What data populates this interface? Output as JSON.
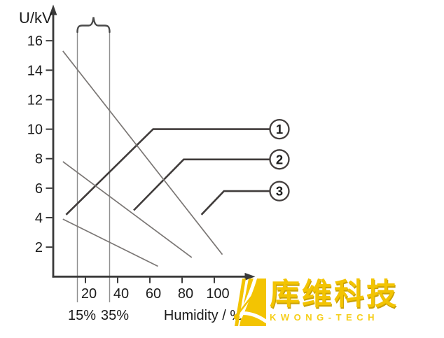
{
  "chart_data": {
    "type": "line",
    "title": "",
    "ylabel": "U/kV",
    "xlabel": "Humidity / %",
    "xlim": [
      0,
      125
    ],
    "ylim": [
      0,
      18
    ],
    "xticks": [
      20,
      40,
      60,
      80,
      100
    ],
    "yticks": [
      2,
      4,
      6,
      8,
      10,
      12,
      14,
      16
    ],
    "grid": false,
    "legend_position": "circled numbers right of saturated curves",
    "band": {
      "x_from": 15,
      "x_to": 35,
      "label_from": "15%",
      "label_to": "35%"
    },
    "series": [
      {
        "name": "curve-1",
        "label": "1",
        "style": "dark",
        "points": [
          [
            8,
            4.2
          ],
          [
            62,
            10
          ],
          [
            134.5,
            10
          ]
        ]
      },
      {
        "name": "curve-2",
        "label": "2",
        "style": "dark",
        "points": [
          [
            50,
            4.5
          ],
          [
            81,
            7.95
          ],
          [
            134.5,
            7.95
          ]
        ]
      },
      {
        "name": "curve-3",
        "label": "3",
        "style": "dark",
        "points": [
          [
            92,
            4.2
          ],
          [
            106,
            5.8
          ],
          [
            134.5,
            5.8
          ]
        ]
      },
      {
        "name": "decline-a",
        "label": "",
        "style": "gray",
        "points": [
          [
            6,
            15.3
          ],
          [
            105,
            1.5
          ]
        ]
      },
      {
        "name": "decline-b",
        "label": "",
        "style": "gray",
        "points": [
          [
            6,
            7.8
          ],
          [
            86,
            1.3
          ]
        ]
      },
      {
        "name": "decline-c",
        "label": "",
        "style": "gray",
        "points": [
          [
            6,
            3.9
          ],
          [
            65,
            0.7
          ]
        ]
      }
    ]
  },
  "logo": {
    "text_cn": "库维科技",
    "text_en": "KWONG-TECH",
    "brand_color": "#f3c402"
  }
}
